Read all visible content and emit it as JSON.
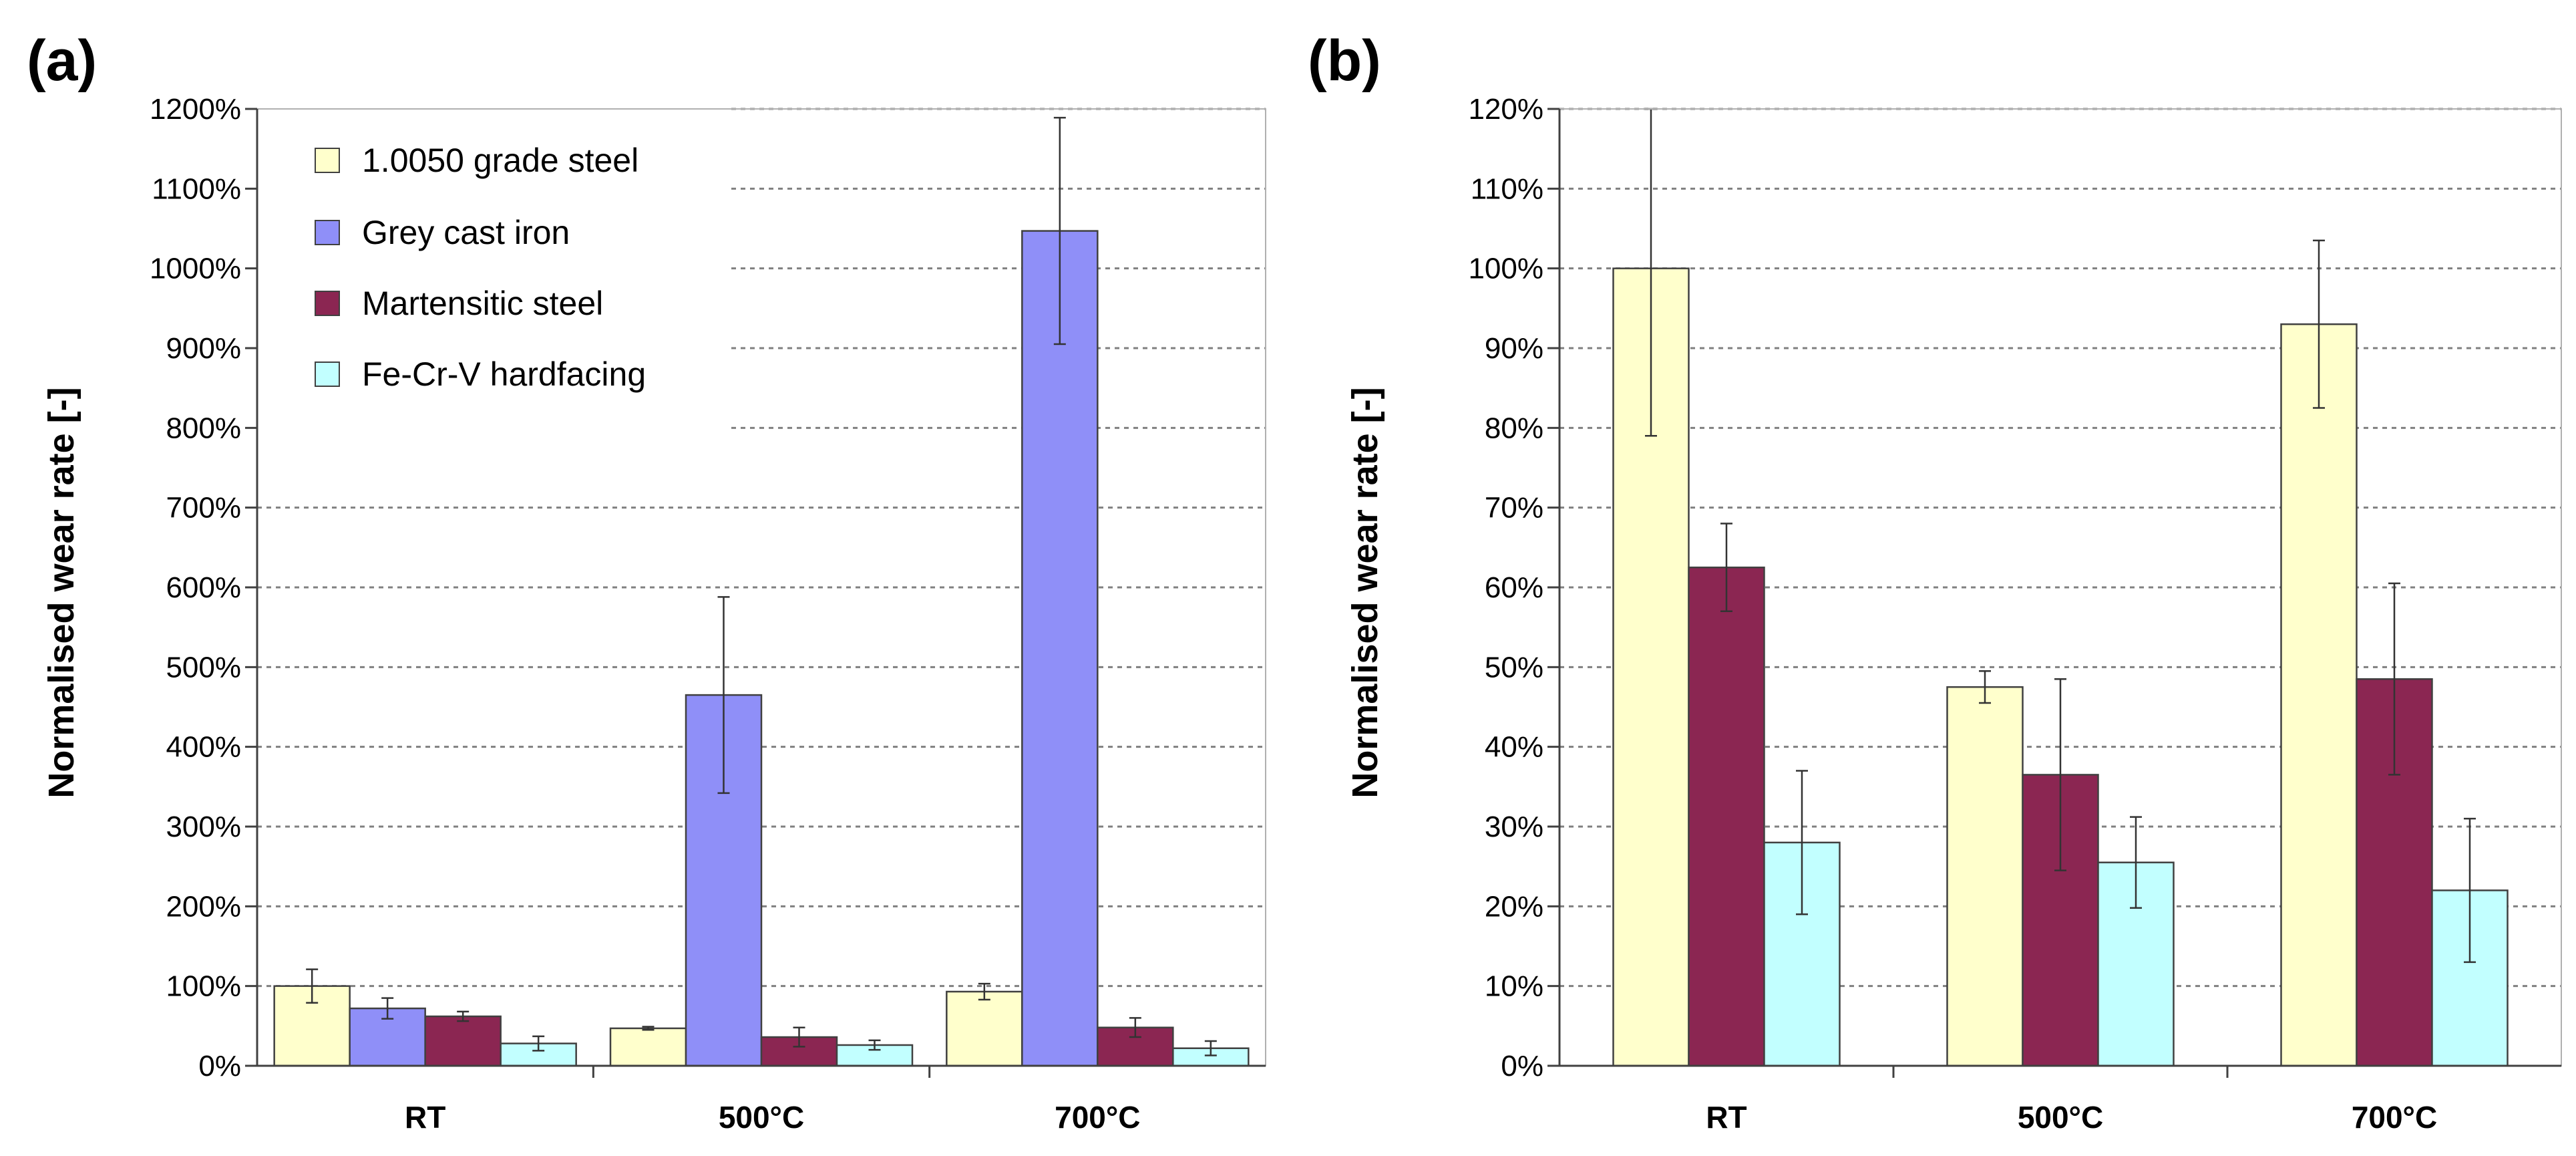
{
  "colors": {
    "1.0050 grade steel": "#ffffcc",
    "Grey cast iron": "#8f8ff8",
    "Martensitic steel": "#8b2652",
    "Fe-Cr-V hardfacing": "#c2ffff",
    "outline": "#404040",
    "grid": "#808080"
  },
  "chart_data": [
    {
      "type": "bar",
      "panel": "(a)",
      "ylabel": "Normalised wear rate [-]",
      "xlabel": "",
      "ylim": [
        0,
        1200
      ],
      "yticks": [
        0,
        100,
        200,
        300,
        400,
        500,
        600,
        700,
        800,
        900,
        1000,
        1100,
        1200
      ],
      "ytick_labels": [
        "0%",
        "100%",
        "200%",
        "300%",
        "400%",
        "500%",
        "600%",
        "700%",
        "800%",
        "900%",
        "1000%",
        "1100%",
        "1200%"
      ],
      "categories": [
        "RT",
        "500°C",
        "700°C"
      ],
      "grid": true,
      "legend_position": "top-left",
      "series": [
        {
          "name": "1.0050 grade steel",
          "values": [
            100,
            47,
            93
          ],
          "errors": [
            21,
            2,
            10
          ]
        },
        {
          "name": "Grey cast iron",
          "values": [
            72,
            465,
            1047
          ],
          "errors": [
            13,
            123,
            142
          ]
        },
        {
          "name": "Martensitic steel",
          "values": [
            62,
            36,
            48
          ],
          "errors": [
            6,
            12,
            12
          ]
        },
        {
          "name": "Fe-Cr-V hardfacing",
          "values": [
            28,
            26,
            22
          ],
          "errors": [
            9,
            6,
            9
          ]
        }
      ]
    },
    {
      "type": "bar",
      "panel": "(b)",
      "ylabel": "Normalised wear rate [-]",
      "xlabel": "",
      "ylim": [
        0,
        120
      ],
      "yticks": [
        0,
        10,
        20,
        30,
        40,
        50,
        60,
        70,
        80,
        90,
        100,
        110,
        120
      ],
      "ytick_labels": [
        "0%",
        "10%",
        "20%",
        "30%",
        "40%",
        "50%",
        "60%",
        "70%",
        "80%",
        "90%",
        "100%",
        "110%",
        "120%"
      ],
      "categories": [
        "RT",
        "500°C",
        "700°C"
      ],
      "grid": true,
      "series": [
        {
          "name": "1.0050 grade steel",
          "values": [
            100,
            47.5,
            93
          ],
          "errors": [
            21,
            2,
            10.5
          ]
        },
        {
          "name": "Martensitic steel",
          "values": [
            62.5,
            36.5,
            48.5
          ],
          "errors": [
            5.5,
            12,
            12
          ]
        },
        {
          "name": "Fe-Cr-V hardfacing",
          "values": [
            28,
            25.5,
            22
          ],
          "errors": [
            9,
            5.7,
            9
          ]
        }
      ]
    }
  ]
}
